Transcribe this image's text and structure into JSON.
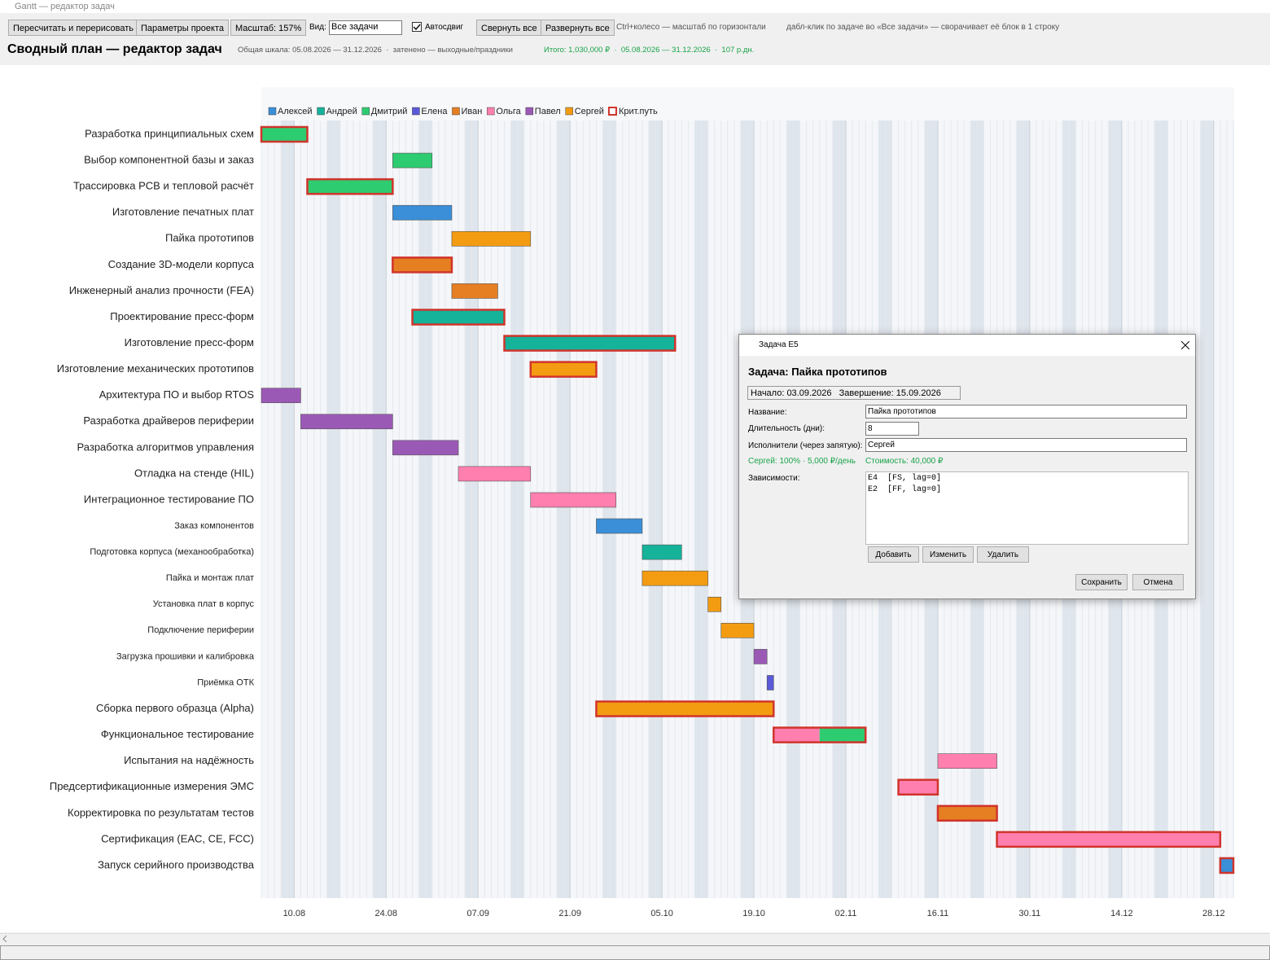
{
  "window": {
    "title": "Gantt — редактор задач"
  },
  "toolbar": {
    "buttons": [
      "Пересчитать и перерисовать",
      "Параметры проекта",
      "Масштаб: 157%"
    ],
    "view_label": "Вид:",
    "view_value": "Все задачи",
    "autoshift": "Автосдвиг",
    "buttons2": [
      "Свернуть все",
      "Развернуть все"
    ],
    "hints": [
      "Ctrl+колесо — масштаб по горизонтали",
      "дабл-клик по задаче во «Все задачи» — сворачивает её блок в 1 строку"
    ]
  },
  "header": {
    "title": "Сводный план — редактор задач",
    "scale": "Общая шкала: 05.08.2026 — 31.12.2026  ·  затенено — выходные/праздники",
    "total": "Итого: 1,030,000 ₽  ·  05.08.2026 — 31.12.2026  ·  107 р.дн."
  },
  "chart_data": {
    "type": "gantt",
    "xlim": [
      "05.08.2026",
      "31.12.2026"
    ],
    "xticks": [
      "10.08",
      "24.08",
      "07.09",
      "21.09",
      "05.10",
      "19.10",
      "02.11",
      "16.11",
      "30.11",
      "14.12",
      "28.12"
    ],
    "legend": [
      {
        "name": "Алексей",
        "color": "#3a8fd8"
      },
      {
        "name": "Андрей",
        "color": "#14b39a"
      },
      {
        "name": "Дмитрий",
        "color": "#2ecc71"
      },
      {
        "name": "Елена",
        "color": "#5a5ad8"
      },
      {
        "name": "Иван",
        "color": "#e67e22"
      },
      {
        "name": "Ольга",
        "color": "#ff7fae"
      },
      {
        "name": "Павел",
        "color": "#9b59b6"
      },
      {
        "name": "Сергей",
        "color": "#f39c12"
      }
    ],
    "critical_label": "Крит.путь",
    "critical_color": "#d0342c",
    "tasks": [
      {
        "name": "Разработка принципиальных схем",
        "start": "05.08",
        "end": "12.08",
        "assignees": [
          "Дмитрий"
        ],
        "critical": true
      },
      {
        "name": "Выбор компонентной базы и заказ",
        "start": "25.08",
        "end": "31.08",
        "assignees": [
          "Дмитрий"
        ],
        "critical": false
      },
      {
        "name": "Трассировка PCB и тепловой расчёт",
        "start": "12.08",
        "end": "25.08",
        "assignees": [
          "Дмитрий"
        ],
        "critical": true
      },
      {
        "name": "Изготовление печатных плат",
        "start": "25.08",
        "end": "03.09",
        "assignees": [
          "Алексей"
        ],
        "critical": false
      },
      {
        "name": "Пайка прототипов",
        "start": "03.09",
        "end": "15.09",
        "assignees": [
          "Сергей"
        ],
        "critical": false
      },
      {
        "name": "Создание 3D-модели корпуса",
        "start": "25.08",
        "end": "03.09",
        "assignees": [
          "Иван"
        ],
        "critical": true
      },
      {
        "name": "Инженерный анализ прочности (FEA)",
        "start": "03.09",
        "end": "10.09",
        "assignees": [
          "Иван"
        ],
        "critical": false
      },
      {
        "name": "Проектирование пресс-форм",
        "start": "28.08",
        "end": "11.09",
        "assignees": [
          "Андрей"
        ],
        "critical": true
      },
      {
        "name": "Изготовление пресс-форм",
        "start": "11.09",
        "end": "07.10",
        "assignees": [
          "Андрей"
        ],
        "critical": true
      },
      {
        "name": "Изготовление механических прототипов",
        "start": "15.09",
        "end": "25.09",
        "assignees": [
          "Сергей"
        ],
        "critical": true
      },
      {
        "name": "Архитектура ПО и выбор RTOS",
        "start": "05.08",
        "end": "11.08",
        "assignees": [
          "Павел"
        ],
        "critical": false
      },
      {
        "name": "Разработка драйверов периферии",
        "start": "11.08",
        "end": "25.08",
        "assignees": [
          "Павел"
        ],
        "critical": false
      },
      {
        "name": "Разработка алгоритмов управления",
        "start": "25.08",
        "end": "04.09",
        "assignees": [
          "Павел"
        ],
        "critical": false
      },
      {
        "name": "Отладка на стенде (HIL)",
        "start": "04.09",
        "end": "15.09",
        "assignees": [
          "Ольга"
        ],
        "critical": false
      },
      {
        "name": "Интеграционное тестирование ПО",
        "start": "15.09",
        "end": "28.09",
        "assignees": [
          "Ольга"
        ],
        "critical": false
      },
      {
        "name": "Заказ компонентов",
        "start": "25.09",
        "end": "02.10",
        "assignees": [
          "Алексей"
        ],
        "critical": false
      },
      {
        "name": "Подготовка корпуса (механообработка)",
        "start": "02.10",
        "end": "08.10",
        "assignees": [
          "Андрей"
        ],
        "critical": false
      },
      {
        "name": "Пайка и монтаж плат",
        "start": "02.10",
        "end": "12.10",
        "assignees": [
          "Сергей"
        ],
        "critical": false
      },
      {
        "name": "Установка плат в корпус",
        "start": "12.10",
        "end": "14.10",
        "assignees": [
          "Сергей"
        ],
        "critical": false
      },
      {
        "name": "Подключение периферии",
        "start": "14.10",
        "end": "19.10",
        "assignees": [
          "Сергей"
        ],
        "critical": false
      },
      {
        "name": "Загрузка прошивки и калибровка",
        "start": "19.10",
        "end": "21.10",
        "assignees": [
          "Павел"
        ],
        "critical": false
      },
      {
        "name": "Приёмка ОТК",
        "start": "21.10",
        "end": "22.10",
        "assignees": [
          "Елена"
        ],
        "critical": false
      },
      {
        "name": "Сборка первого образца (Alpha)",
        "start": "25.09",
        "end": "22.10",
        "assignees": [
          "Сергей"
        ],
        "critical": true
      },
      {
        "name": "Функциональное тестирование",
        "start": "22.10",
        "end": "05.11",
        "assignees": [
          "Ольга",
          "Дмитрий"
        ],
        "critical": true
      },
      {
        "name": "Испытания на надёжность",
        "start": "16.11",
        "end": "25.11",
        "assignees": [
          "Ольга"
        ],
        "critical": false
      },
      {
        "name": "Предсертификационные измерения ЭМС",
        "start": "10.11",
        "end": "16.11",
        "assignees": [
          "Ольга"
        ],
        "critical": true
      },
      {
        "name": "Корректировка по результатам тестов",
        "start": "16.11",
        "end": "25.11",
        "assignees": [
          "Иван"
        ],
        "critical": true
      },
      {
        "name": "Сертификация (EAC, CE, FCC)",
        "start": "25.11",
        "end": "29.12",
        "assignees": [
          "Ольга"
        ],
        "critical": true
      },
      {
        "name": "Запуск серийного производства",
        "start": "29.12",
        "end": "31.12",
        "assignees": [
          "Алексей"
        ],
        "critical": true
      }
    ]
  },
  "dialog": {
    "title": "Задача E5",
    "heading": "Задача: Пайка прототипов",
    "dates": "Начало: 03.09.2026   Завершение: 15.09.2026",
    "fields": [
      {
        "label": "Название:",
        "value": "Пайка прототипов"
      },
      {
        "label": "Длительность (дни):",
        "value": 8
      },
      {
        "label": "Исполнители (через запятую):",
        "value": "Сергей"
      }
    ],
    "summary": [
      "Сергей: 100% · 5,000 ₽/день",
      "Стоимость: 40,000 ₽"
    ],
    "deps_label": "Зависимости:",
    "deps": [
      "E4  [FS, lag=0]",
      "E2  [FF, lag=0]"
    ],
    "dep_buttons": [
      "Добавить",
      "Изменить",
      "Удалить"
    ],
    "buttons": [
      "Сохранить",
      "Отмена"
    ]
  }
}
